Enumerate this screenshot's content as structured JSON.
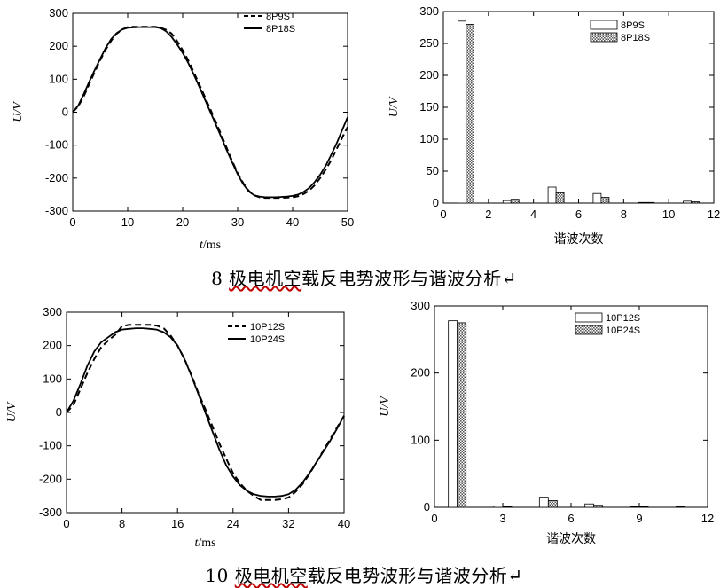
{
  "captions": {
    "top": {
      "prefix": "8 ",
      "underlined": "极电机空",
      "rest": "载反电势波形与谐波分析↵"
    },
    "bottom": {
      "prefix": "10 ",
      "underlined": "极电机空",
      "rest": "载反电势波形与谐波分析↵"
    }
  },
  "chart_data": [
    {
      "id": "wave8",
      "type": "line",
      "xlabel_italic": "t",
      "xlabel_rest": "/ms",
      "ylabel": "U/V",
      "xlim": [
        0,
        50
      ],
      "ylim": [
        -300,
        300
      ],
      "xticks": [
        0,
        10,
        20,
        30,
        40,
        50
      ],
      "yticks": [
        -300,
        -200,
        -100,
        0,
        100,
        200,
        300
      ],
      "legend_position": "top-right",
      "series": [
        {
          "name": "8P9S",
          "style": "dashed",
          "x": [
            0,
            1,
            2,
            3,
            4,
            5,
            6,
            7,
            8,
            9,
            10,
            11,
            12,
            13,
            14,
            15,
            16,
            17,
            18,
            19,
            20,
            21,
            22,
            23,
            24,
            25,
            26,
            27,
            28,
            29,
            30,
            31,
            32,
            33,
            34,
            35,
            36,
            37,
            38,
            39,
            40,
            41,
            42,
            43,
            44,
            45,
            46,
            47,
            48,
            49,
            50
          ],
          "y": [
            0,
            18,
            48,
            85,
            122,
            158,
            190,
            217,
            238,
            251,
            258,
            259,
            259,
            259,
            259,
            259,
            256,
            250,
            238,
            215,
            188,
            158,
            122,
            85,
            48,
            10,
            -28,
            -68,
            -108,
            -148,
            -185,
            -215,
            -238,
            -252,
            -258,
            -260,
            -260,
            -260,
            -260,
            -259,
            -258,
            -255,
            -248,
            -238,
            -222,
            -200,
            -175,
            -146,
            -112,
            -78,
            -45
          ]
        },
        {
          "name": "8P18S",
          "style": "solid",
          "x": [
            0,
            1,
            2,
            3,
            4,
            5,
            6,
            7,
            8,
            9,
            10,
            11,
            12,
            13,
            14,
            15,
            16,
            17,
            18,
            19,
            20,
            21,
            22,
            23,
            24,
            25,
            26,
            27,
            28,
            29,
            30,
            31,
            32,
            33,
            34,
            35,
            36,
            37,
            38,
            39,
            40,
            41,
            42,
            43,
            44,
            45,
            46,
            47,
            48,
            49,
            50
          ],
          "y": [
            0,
            20,
            55,
            92,
            128,
            162,
            195,
            222,
            240,
            251,
            256,
            257,
            258,
            258,
            258,
            258,
            255,
            245,
            228,
            205,
            180,
            150,
            115,
            78,
            40,
            2,
            -36,
            -75,
            -115,
            -152,
            -188,
            -218,
            -240,
            -252,
            -256,
            -258,
            -258,
            -258,
            -257,
            -256,
            -254,
            -250,
            -242,
            -230,
            -212,
            -190,
            -163,
            -130,
            -95,
            -55,
            -15
          ]
        }
      ]
    },
    {
      "id": "harm8",
      "type": "bar",
      "xlabel": "谐波次数",
      "ylabel": "U/V",
      "xlim": [
        0,
        12
      ],
      "ylim": [
        0,
        300
      ],
      "xticks": [
        0,
        2,
        4,
        6,
        8,
        10,
        12
      ],
      "yticks": [
        0,
        50,
        100,
        150,
        200,
        250,
        300
      ],
      "legend_position": "top-right",
      "x": [
        1,
        3,
        5,
        7,
        9,
        11
      ],
      "series": [
        {
          "name": "8P9S",
          "fill": "white",
          "values": [
            285,
            4,
            25,
            15,
            1,
            3
          ]
        },
        {
          "name": "8P18S",
          "fill": "hatched",
          "values": [
            280,
            6,
            16,
            9,
            1,
            2
          ]
        }
      ]
    },
    {
      "id": "wave10",
      "type": "line",
      "xlabel_italic": "t",
      "xlabel_rest": "/ms",
      "ylabel": "U/V",
      "xlim": [
        0,
        40
      ],
      "ylim": [
        -300,
        300
      ],
      "xticks": [
        0,
        8,
        16,
        24,
        32,
        40
      ],
      "yticks": [
        -300,
        -200,
        -100,
        0,
        100,
        200,
        300
      ],
      "legend_position": "top-right",
      "series": [
        {
          "name": "10P12S",
          "style": "dashed",
          "x": [
            0,
            1,
            2,
            3,
            4,
            5,
            6,
            7,
            8,
            9,
            10,
            11,
            12,
            13,
            14,
            15,
            16,
            17,
            18,
            19,
            20,
            21,
            22,
            23,
            24,
            25,
            26,
            27,
            28,
            29,
            30,
            31,
            32,
            33,
            34,
            35,
            36,
            37,
            38,
            39,
            40
          ],
          "y": [
            0,
            22,
            70,
            118,
            160,
            195,
            215,
            232,
            258,
            262,
            262,
            262,
            262,
            260,
            252,
            230,
            200,
            160,
            112,
            58,
            10,
            -40,
            -92,
            -138,
            -182,
            -212,
            -235,
            -250,
            -262,
            -262,
            -262,
            -260,
            -255,
            -238,
            -215,
            -185,
            -150,
            -115,
            -80,
            -45,
            -10
          ]
        },
        {
          "name": "10P24S",
          "style": "solid",
          "x": [
            0,
            1,
            2,
            3,
            4,
            5,
            6,
            7,
            8,
            9,
            10,
            11,
            12,
            13,
            14,
            15,
            16,
            17,
            18,
            19,
            20,
            21,
            22,
            23,
            24,
            25,
            26,
            27,
            28,
            29,
            30,
            31,
            32,
            33,
            34,
            35,
            36,
            37,
            38,
            39,
            40
          ],
          "y": [
            0,
            35,
            85,
            140,
            182,
            210,
            225,
            240,
            248,
            250,
            252,
            252,
            250,
            248,
            240,
            225,
            200,
            160,
            110,
            55,
            0,
            -55,
            -110,
            -158,
            -192,
            -218,
            -235,
            -245,
            -250,
            -252,
            -252,
            -250,
            -245,
            -232,
            -210,
            -182,
            -150,
            -118,
            -85,
            -48,
            -10
          ]
        }
      ]
    },
    {
      "id": "harm10",
      "type": "bar",
      "xlabel": "谐波次数",
      "ylabel": "U/V",
      "xlim": [
        0,
        12
      ],
      "ylim": [
        0,
        300
      ],
      "xticks": [
        0,
        3,
        6,
        9,
        12
      ],
      "yticks": [
        0,
        100,
        200,
        300
      ],
      "legend_position": "top-right",
      "x": [
        1,
        3,
        5,
        7,
        9,
        11
      ],
      "series": [
        {
          "name": "10P12S",
          "fill": "white",
          "values": [
            278,
            2,
            15,
            5,
            1,
            1
          ]
        },
        {
          "name": "10P24S",
          "fill": "hatched",
          "values": [
            275,
            1,
            10,
            3,
            1,
            0
          ]
        }
      ]
    }
  ]
}
